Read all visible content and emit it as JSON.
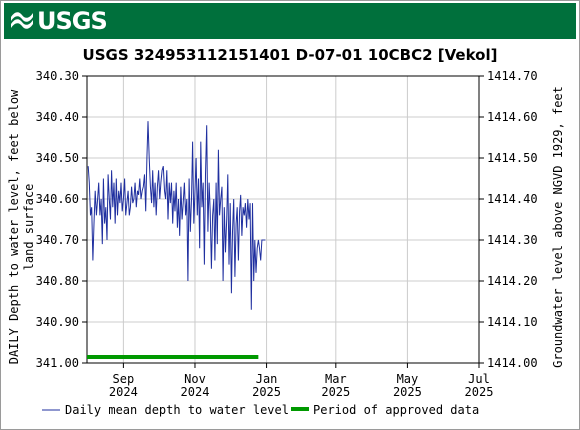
{
  "header": {
    "logo_text": "USGS",
    "logo_icon": "usgs-wave-logo-icon",
    "banner_color": "#00703c"
  },
  "chart_data": {
    "type": "line",
    "title": "USGS 324953112151401 D-07-01 10CBC2 [Vekol]",
    "ylabel_left": [
      "DAILY Depth to water level, feet below",
      "land surface"
    ],
    "ylabel_right": "Groundwater level above NGVD 1929, feet",
    "y_left_lim": [
      340.3,
      341.0
    ],
    "y_left_ticks": [
      "340.30",
      "340.40",
      "340.50",
      "340.60",
      "340.70",
      "340.80",
      "340.90",
      "341.00"
    ],
    "y_left_inverted": true,
    "y_right_lim": [
      1414.0,
      1414.7
    ],
    "y_right_ticks": [
      "1414.70",
      "1414.60",
      "1414.50",
      "1414.40",
      "1414.30",
      "1414.20",
      "1414.10",
      "1414.00"
    ],
    "x_range_days": [
      0,
      334
    ],
    "x_ticks": [
      {
        "day": 31,
        "month": "Sep",
        "year": "2024"
      },
      {
        "day": 92,
        "month": "Nov",
        "year": "2024"
      },
      {
        "day": 153,
        "month": "Jan",
        "year": "2025"
      },
      {
        "day": 212,
        "month": "Mar",
        "year": "2025"
      },
      {
        "day": 273,
        "month": "May",
        "year": "2025"
      },
      {
        "day": 334,
        "month": "Jul",
        "year": "2025"
      }
    ],
    "grid": true,
    "legend_placement": "bottom",
    "series": [
      {
        "name": "Daily mean depth to water level",
        "color": "#1f2f9f",
        "x": [
          1,
          2,
          3,
          4,
          5,
          6,
          7,
          8,
          9,
          10,
          11,
          12,
          13,
          14,
          15,
          16,
          17,
          18,
          19,
          20,
          21,
          22,
          23,
          24,
          25,
          26,
          27,
          28,
          29,
          30,
          31,
          32,
          33,
          34,
          35,
          36,
          37,
          38,
          39,
          40,
          41,
          42,
          43,
          44,
          45,
          46,
          47,
          48,
          49,
          50,
          51,
          52,
          53,
          54,
          55,
          56,
          57,
          58,
          59,
          60,
          61,
          62,
          63,
          64,
          65,
          66,
          67,
          68,
          69,
          70,
          71,
          72,
          73,
          74,
          75,
          76,
          77,
          78,
          79,
          80,
          81,
          82,
          83,
          84,
          85,
          86,
          87,
          88,
          89,
          90,
          91,
          92,
          93,
          94,
          95,
          96,
          97,
          98,
          99,
          100,
          101,
          102,
          103,
          104,
          105,
          106,
          107,
          108,
          109,
          110,
          111,
          112,
          113,
          114,
          115,
          116,
          117,
          118,
          119,
          120,
          121,
          122,
          123,
          124,
          125,
          126,
          127,
          128,
          129,
          130,
          131,
          132,
          133,
          134,
          135,
          136,
          137,
          138,
          139,
          140,
          141,
          142,
          143,
          144,
          145,
          146,
          147,
          148,
          149,
          150,
          151,
          152
        ],
        "values": [
          340.52,
          340.56,
          340.64,
          340.62,
          340.75,
          340.66,
          340.58,
          340.64,
          340.6,
          340.56,
          340.64,
          340.6,
          340.71,
          340.55,
          340.66,
          340.62,
          340.7,
          340.54,
          340.6,
          340.65,
          340.53,
          340.62,
          340.56,
          340.66,
          340.55,
          340.64,
          340.58,
          340.61,
          340.56,
          340.63,
          340.6,
          340.55,
          340.64,
          340.61,
          340.58,
          340.64,
          340.62,
          340.57,
          340.61,
          340.6,
          340.56,
          340.62,
          340.58,
          340.59,
          340.55,
          340.6,
          340.58,
          340.57,
          340.54,
          340.63,
          340.5,
          340.41,
          340.5,
          340.57,
          340.61,
          340.53,
          340.62,
          340.56,
          340.64,
          340.57,
          340.53,
          340.6,
          340.56,
          340.53,
          340.52,
          340.58,
          340.6,
          340.53,
          340.65,
          340.56,
          340.61,
          340.56,
          340.66,
          340.58,
          340.63,
          340.56,
          340.67,
          340.6,
          340.69,
          340.57,
          340.65,
          340.61,
          340.56,
          340.64,
          340.6,
          340.8,
          340.55,
          340.68,
          340.6,
          340.46,
          340.66,
          340.58,
          340.5,
          340.64,
          340.55,
          340.72,
          340.46,
          340.62,
          340.56,
          340.76,
          340.54,
          340.42,
          340.68,
          340.56,
          340.63,
          340.77,
          340.64,
          340.6,
          340.75,
          340.56,
          340.71,
          340.48,
          340.64,
          340.6,
          340.57,
          340.8,
          340.62,
          340.73,
          340.65,
          340.54,
          340.76,
          340.61,
          340.83,
          340.68,
          340.6,
          340.79,
          340.66,
          340.62,
          340.75,
          340.63,
          340.59,
          340.69,
          340.62,
          340.64,
          340.61,
          340.67,
          340.6,
          340.65,
          340.61,
          340.87,
          340.61,
          340.8,
          340.7,
          340.78,
          340.72,
          340.7,
          340.72,
          340.75,
          340.7,
          340.7,
          340.7,
          340.7
        ]
      }
    ],
    "approved_period": {
      "name": "Period of approved data",
      "color": "#009900",
      "start_day": 0,
      "end_day": 146
    }
  },
  "legend": {
    "daily_label": "Daily mean depth to water level",
    "approved_label": "Period of approved data"
  }
}
